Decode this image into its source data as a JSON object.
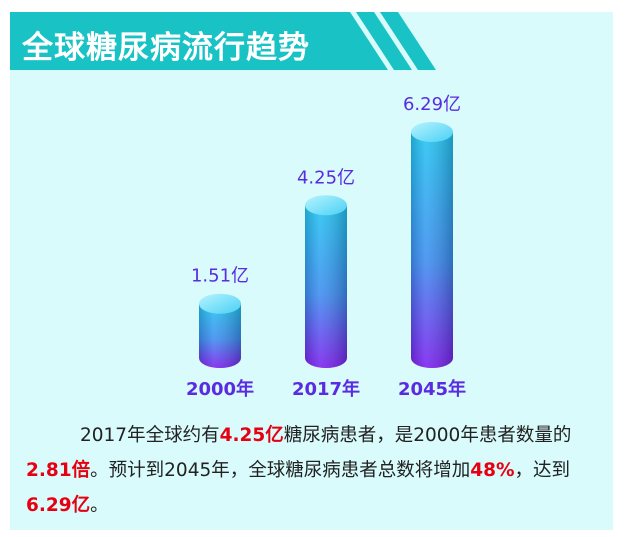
{
  "title": "全球糖尿病流行趋势",
  "chart_data": {
    "type": "bar",
    "categories": [
      "2000年",
      "2017年",
      "2045年"
    ],
    "values": [
      1.51,
      4.25,
      6.29
    ],
    "value_labels": [
      "1.51亿",
      "4.25亿",
      "6.29亿"
    ],
    "unit": "亿",
    "ylim": [
      0,
      7
    ]
  },
  "description": {
    "p1": "2017年全球约有",
    "h1": "4.25亿",
    "p2": "糖尿病患者，是2000年患者数量的",
    "h2": "2.81倍",
    "p3": "。预计到2045年，全球糖尿病患者总数将增加",
    "h3": "48%",
    "p4": "，达到",
    "h4": "6.29亿",
    "p5": "。"
  },
  "colors": {
    "banner": "#19c2c4",
    "panel": "#d9fbfb",
    "label": "#5a2be0",
    "highlight": "#e60012",
    "bar_top": "#22b6ee",
    "bar_bottom": "#7a22ee"
  }
}
